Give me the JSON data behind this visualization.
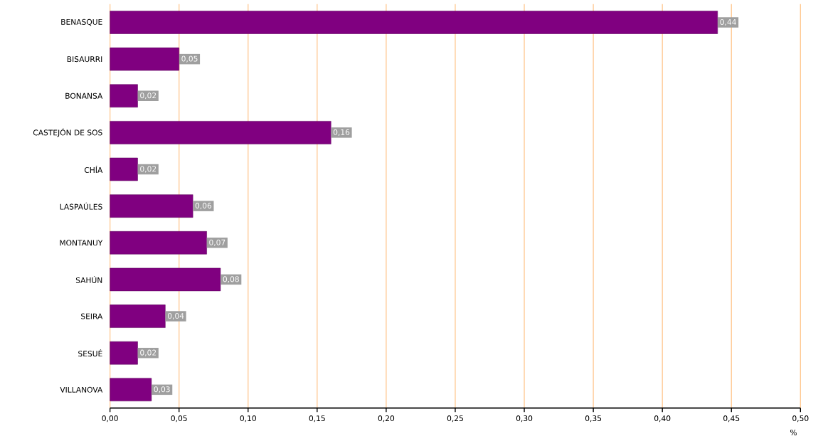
{
  "chart_data": {
    "type": "bar",
    "orientation": "horizontal",
    "xlabel": "%",
    "categories": [
      "BENASQUE",
      "BISAURRI",
      "BONANSA",
      "CASTEJÓN DE SOS",
      "CHÍA",
      "LASPAÚLES",
      "MONTANUY",
      "SAHÚN",
      "SEIRA",
      "SESUÉ",
      "VILLANOVA"
    ],
    "values": [
      0.44,
      0.05,
      0.02,
      0.16,
      0.02,
      0.06,
      0.07,
      0.08,
      0.04,
      0.02,
      0.03
    ],
    "value_labels": [
      "0,44",
      "0,05",
      "0,02",
      "0,16",
      "0,02",
      "0,06",
      "0,07",
      "0,08",
      "0,04",
      "0,02",
      "0,03"
    ],
    "color": "#800080",
    "xlim": [
      0,
      0.5
    ],
    "xticks": [
      {
        "value": 0,
        "label": "0,00"
      },
      {
        "value": 0.05,
        "label": "0,05"
      },
      {
        "value": 0.1,
        "label": "0,10"
      },
      {
        "value": 0.15,
        "label": "0,15"
      },
      {
        "value": 0.2,
        "label": "0,20"
      },
      {
        "value": 0.25,
        "label": "0,25"
      },
      {
        "value": 0.3,
        "label": "0,30"
      },
      {
        "value": 0.35,
        "label": "0,35"
      },
      {
        "value": 0.4,
        "label": "0,40"
      },
      {
        "value": 0.45,
        "label": "0,45"
      },
      {
        "value": 0.5,
        "label": "0,50"
      }
    ],
    "grid": "x"
  }
}
